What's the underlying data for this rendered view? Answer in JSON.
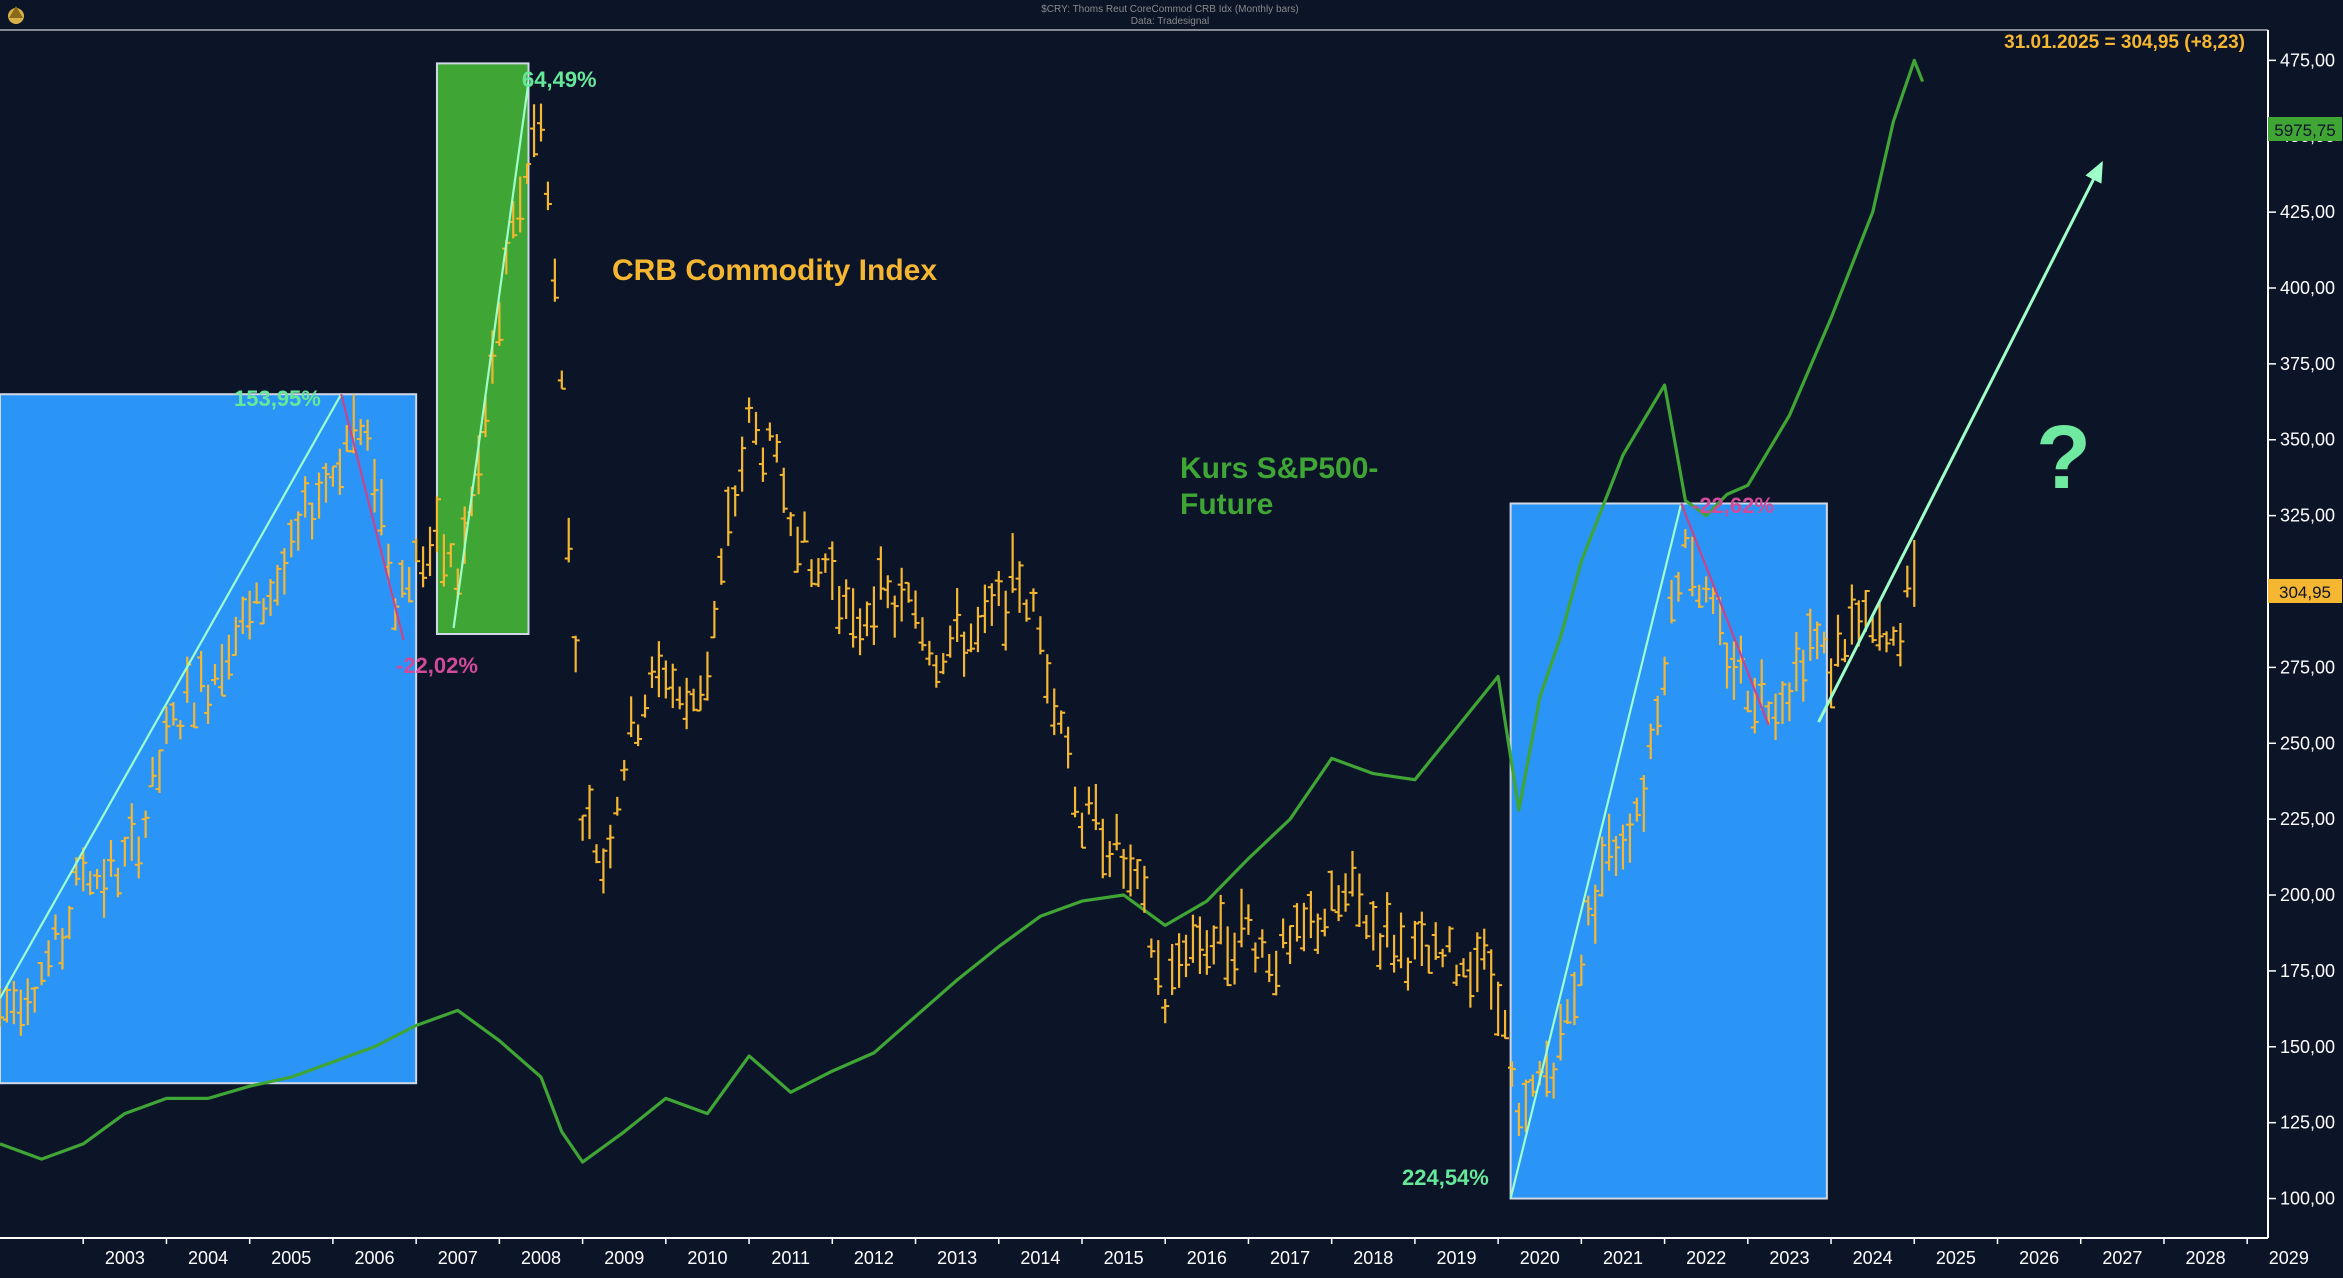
{
  "header": {
    "title_line1": "$CRY: Thoms Reut CoreCommod CRB Idx (Monthly bars)",
    "title_line2": "Data: Tradesignal"
  },
  "readout": "31.01.2025 = 304,95 (+8,23)",
  "labels": {
    "crb": "CRB Commodity Index",
    "sp_line1": "Kurs S&P500-",
    "sp_line2": "Future",
    "question": "?"
  },
  "annotations": [
    {
      "id": "gain-2003-2006",
      "text": "153,95%",
      "color": "#66e89a"
    },
    {
      "id": "loss-2006-2007",
      "text": "-22,02%",
      "color": "#d14b9a"
    },
    {
      "id": "gain-2007-2008",
      "text": "64,49%",
      "color": "#66e89a"
    },
    {
      "id": "gain-2020-2022",
      "text": "224,54%",
      "color": "#66e89a"
    },
    {
      "id": "loss-2022-2023",
      "text": "-22,62%",
      "color": "#d14b9a"
    }
  ],
  "price_tags": {
    "sp500": "5975,75",
    "crb": "304,95"
  },
  "colors": {
    "background": "#0c1428",
    "crb": "#f5b731",
    "sp500": "#3fa535",
    "box_blue": "#2b94f7",
    "box_green": "#3fa535",
    "trend": "#9effc8",
    "down": "#c7468a",
    "axis": "#ffffff"
  },
  "chart_data": {
    "type": "bar",
    "series": [
      {
        "name": "CRB Commodity Index",
        "style": "ohlc-monthly",
        "points": [
          [
            2002.0,
            162
          ],
          [
            2002.25,
            168
          ],
          [
            2002.5,
            175
          ],
          [
            2002.75,
            185
          ],
          [
            2003.0,
            210
          ],
          [
            2003.25,
            205
          ],
          [
            2003.5,
            210
          ],
          [
            2003.75,
            225
          ],
          [
            2004.0,
            250
          ],
          [
            2004.25,
            265
          ],
          [
            2004.5,
            270
          ],
          [
            2004.75,
            285
          ],
          [
            2005.0,
            290
          ],
          [
            2005.25,
            300
          ],
          [
            2005.5,
            310
          ],
          [
            2005.75,
            330
          ],
          [
            2006.0,
            340
          ],
          [
            2006.25,
            355
          ],
          [
            2006.5,
            340
          ],
          [
            2006.75,
            300
          ],
          [
            2007.0,
            310
          ],
          [
            2007.25,
            315
          ],
          [
            2007.5,
            305
          ],
          [
            2007.75,
            340
          ],
          [
            2008.0,
            390
          ],
          [
            2008.25,
            430
          ],
          [
            2008.5,
            460
          ],
          [
            2008.75,
            370
          ],
          [
            2009.0,
            230
          ],
          [
            2009.25,
            210
          ],
          [
            2009.5,
            245
          ],
          [
            2009.75,
            265
          ],
          [
            2010.0,
            275
          ],
          [
            2010.25,
            260
          ],
          [
            2010.5,
            275
          ],
          [
            2010.75,
            320
          ],
          [
            2011.0,
            355
          ],
          [
            2011.25,
            345
          ],
          [
            2011.5,
            330
          ],
          [
            2011.75,
            305
          ],
          [
            2012.0,
            310
          ],
          [
            2012.25,
            285
          ],
          [
            2012.5,
            300
          ],
          [
            2012.75,
            295
          ],
          [
            2013.0,
            295
          ],
          [
            2013.25,
            280
          ],
          [
            2013.5,
            285
          ],
          [
            2013.75,
            285
          ],
          [
            2014.0,
            295
          ],
          [
            2014.25,
            305
          ],
          [
            2014.5,
            285
          ],
          [
            2014.75,
            260
          ],
          [
            2015.0,
            225
          ],
          [
            2015.25,
            222
          ],
          [
            2015.5,
            210
          ],
          [
            2015.75,
            195
          ],
          [
            2016.0,
            165
          ],
          [
            2016.25,
            185
          ],
          [
            2016.5,
            185
          ],
          [
            2016.75,
            185
          ],
          [
            2017.0,
            190
          ],
          [
            2017.25,
            180
          ],
          [
            2017.5,
            180
          ],
          [
            2017.75,
            190
          ],
          [
            2018.0,
            195
          ],
          [
            2018.25,
            200
          ],
          [
            2018.5,
            190
          ],
          [
            2018.75,
            185
          ],
          [
            2019.0,
            180
          ],
          [
            2019.25,
            178
          ],
          [
            2019.5,
            178
          ],
          [
            2019.75,
            180
          ],
          [
            2020.0,
            170
          ],
          [
            2020.25,
            120
          ],
          [
            2020.5,
            140
          ],
          [
            2020.75,
            150
          ],
          [
            2021.0,
            180
          ],
          [
            2021.25,
            210
          ],
          [
            2021.5,
            220
          ],
          [
            2021.75,
            235
          ],
          [
            2022.0,
            280
          ],
          [
            2022.25,
            320
          ],
          [
            2022.5,
            295
          ],
          [
            2022.75,
            280
          ],
          [
            2023.0,
            270
          ],
          [
            2023.25,
            265
          ],
          [
            2023.5,
            270
          ],
          [
            2023.75,
            285
          ],
          [
            2024.0,
            275
          ],
          [
            2024.25,
            290
          ],
          [
            2024.5,
            285
          ],
          [
            2024.75,
            280
          ],
          [
            2025.0,
            304.95
          ]
        ]
      },
      {
        "name": "Kurs S&P500-Future",
        "style": "line",
        "points": [
          [
            2002.0,
            118
          ],
          [
            2002.5,
            113
          ],
          [
            2003.0,
            118
          ],
          [
            2003.5,
            128
          ],
          [
            2004.0,
            133
          ],
          [
            2004.5,
            133
          ],
          [
            2005.0,
            137
          ],
          [
            2005.5,
            140
          ],
          [
            2006.0,
            145
          ],
          [
            2006.5,
            150
          ],
          [
            2007.0,
            157
          ],
          [
            2007.5,
            162
          ],
          [
            2008.0,
            152
          ],
          [
            2008.5,
            140
          ],
          [
            2008.75,
            122
          ],
          [
            2009.0,
            112
          ],
          [
            2009.5,
            122
          ],
          [
            2010.0,
            133
          ],
          [
            2010.5,
            128
          ],
          [
            2011.0,
            147
          ],
          [
            2011.5,
            135
          ],
          [
            2012.0,
            142
          ],
          [
            2012.5,
            148
          ],
          [
            2013.0,
            160
          ],
          [
            2013.5,
            172
          ],
          [
            2014.0,
            183
          ],
          [
            2014.5,
            193
          ],
          [
            2015.0,
            198
          ],
          [
            2015.5,
            200
          ],
          [
            2016.0,
            190
          ],
          [
            2016.5,
            198
          ],
          [
            2017.0,
            212
          ],
          [
            2017.5,
            225
          ],
          [
            2018.0,
            245
          ],
          [
            2018.5,
            240
          ],
          [
            2019.0,
            238
          ],
          [
            2019.5,
            255
          ],
          [
            2020.0,
            272
          ],
          [
            2020.25,
            228
          ],
          [
            2020.5,
            265
          ],
          [
            2020.75,
            285
          ],
          [
            2021.0,
            310
          ],
          [
            2021.5,
            345
          ],
          [
            2022.0,
            368
          ],
          [
            2022.25,
            330
          ],
          [
            2022.5,
            325
          ],
          [
            2022.75,
            332
          ],
          [
            2023.0,
            335
          ],
          [
            2023.5,
            358
          ],
          [
            2024.0,
            390
          ],
          [
            2024.5,
            425
          ],
          [
            2024.75,
            455
          ],
          [
            2025.0,
            475
          ],
          [
            2025.1,
            468
          ]
        ]
      }
    ],
    "x_axis": {
      "ticks": [
        "2003",
        "2004",
        "2005",
        "2006",
        "2007",
        "2008",
        "2009",
        "2010",
        "2011",
        "2012",
        "2013",
        "2014",
        "2015",
        "2016",
        "2017",
        "2018",
        "2019",
        "2020",
        "2021",
        "2022",
        "2023",
        "2024",
        "2025",
        "2026",
        "2027",
        "2028",
        "2029"
      ],
      "range": [
        2002.0,
        2029.25
      ]
    },
    "y_axis": {
      "ticks": [
        "100,00",
        "125,00",
        "150,00",
        "175,00",
        "200,00",
        "225,00",
        "250,00",
        "275,00",
        "300,00",
        "325,00",
        "350,00",
        "375,00",
        "400,00",
        "425,00",
        "450,00",
        "475,00"
      ],
      "range": [
        87,
        485
      ],
      "position": "right"
    },
    "highlight_boxes": [
      {
        "x0": 2002.0,
        "x1": 2007.0,
        "y0": 138,
        "y1": 365,
        "color": "blue"
      },
      {
        "x0": 2007.25,
        "x1": 2008.35,
        "y0": 286,
        "y1": 474,
        "color": "green"
      },
      {
        "x0": 2020.15,
        "x1": 2023.95,
        "y0": 100,
        "y1": 329,
        "color": "blue"
      }
    ],
    "trend_lines": [
      {
        "from": [
          2002.0,
          166
        ],
        "to": [
          2006.1,
          365
        ],
        "kind": "up"
      },
      {
        "from": [
          2006.1,
          365
        ],
        "to": [
          2006.85,
          284
        ],
        "kind": "down"
      },
      {
        "from": [
          2007.45,
          288
        ],
        "to": [
          2008.35,
          468
        ],
        "kind": "up"
      },
      {
        "from": [
          2020.15,
          100
        ],
        "to": [
          2022.2,
          329
        ],
        "kind": "up"
      },
      {
        "from": [
          2022.2,
          329
        ],
        "to": [
          2023.25,
          256
        ],
        "kind": "down"
      },
      {
        "from": [
          2023.85,
          257
        ],
        "to": [
          2027.25,
          441
        ],
        "kind": "up-arrow"
      }
    ],
    "grid": false,
    "legend": "none"
  }
}
